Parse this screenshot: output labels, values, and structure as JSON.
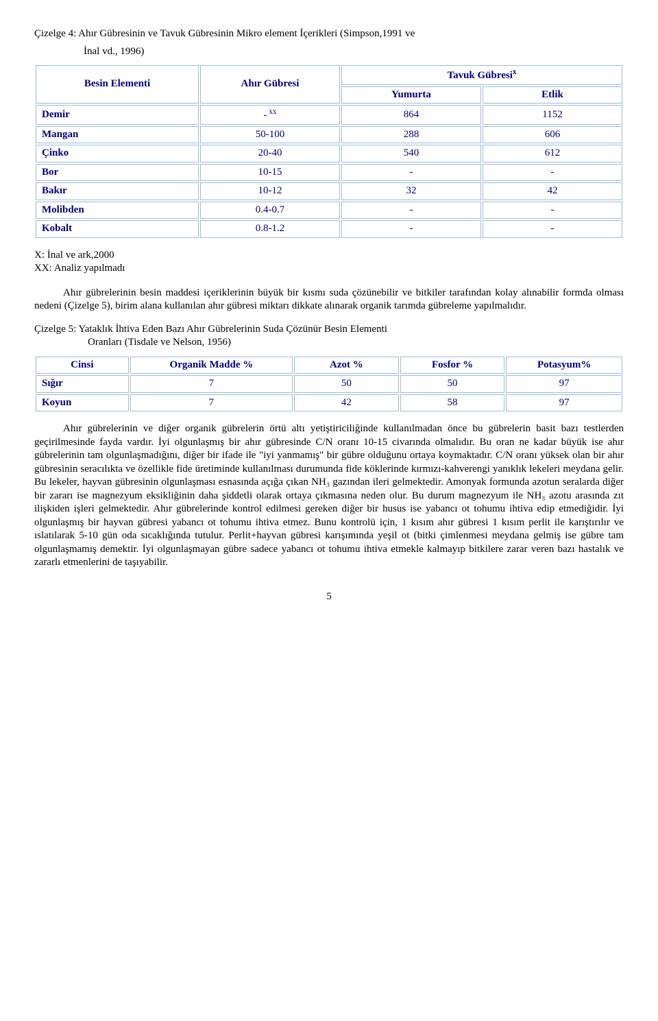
{
  "table4": {
    "caption_line1": "Çizelge 4: Ahır Gübresinin ve Tavuk Gübresinin Mikro element İçerikleri (Simpson,1991 ve",
    "caption_line2": "İnal vd., 1996)",
    "col_besin": "Besin Elementi",
    "col_ahir": "Ahır Gübresi",
    "col_tavuk": "Tavuk Gübresi",
    "col_tavuk_sup": "x",
    "col_yumurta": "Yumurta",
    "col_etlik": "Etlik",
    "rows": [
      {
        "name": "Demir",
        "ahir_pre": "-",
        "ahir_sup": " xx",
        "yum": "864",
        "etl": "1152"
      },
      {
        "name": "Mangan",
        "ahir": "50-100",
        "yum": "288",
        "etl": "606"
      },
      {
        "name": "Çinko",
        "ahir": "20-40",
        "yum": "540",
        "etl": "612"
      },
      {
        "name": "Bor",
        "ahir": "10-15",
        "yum": "-",
        "etl": "-"
      },
      {
        "name": "Bakır",
        "ahir": "10-12",
        "yum": "32",
        "etl": "42"
      },
      {
        "name": "Molibden",
        "ahir": "0.4-0.7",
        "yum": "-",
        "etl": "-"
      },
      {
        "name": "Kobalt",
        "ahir": "0.8-1.2",
        "yum": "-",
        "etl": "-"
      }
    ],
    "note1": "X: İnal ve ark,2000",
    "note2": "XX: Analiz yapılmadı"
  },
  "paragraph1": "Ahır gübrelerinin besin maddesi içeriklerinin büyük bir kısmı suda çözünebilir ve bitkiler tarafından kolay alınabilir formda olması nedeni (Çizelge 5), birim alana kullanılan ahır gübresi miktarı dikkate alınarak organik tarımda gübreleme yapılmalıdır.",
  "table5": {
    "caption_line1": "Çizelge 5: Yataklık İhtiva Eden Bazı Ahır Gübrelerinin Suda Çözünür Besin Elementi",
    "caption_line2": "Oranları  (Tisdale ve Nelson, 1956)",
    "col_cinsi": "Cinsi",
    "col_om": "Organik Madde %",
    "col_azot": "Azot %",
    "col_fosfor": "Fosfor %",
    "col_potas": "Potasyum%",
    "rows": [
      {
        "name": "Sığır",
        "om": "7",
        "azot": "50",
        "fos": "50",
        "pot": "97"
      },
      {
        "name": "Koyun",
        "om": "7",
        "azot": "42",
        "fos": "58",
        "pot": "97"
      }
    ]
  },
  "paragraph2": "Ahır gübrelerinin ve diğer organik gübrelerin örtü altı yetiştiriciliğinde kullanılmadan önce bu gübrelerin basit bazı testlerden geçirilmesinde fayda vardır. İyi olgunlaşmış bir ahır gübresinde C/N oranı 10-15 civarında olmalıdır. Bu oran ne kadar büyük ise ahır gübrelerinin tam olgunlaşmadığını, diğer bir ifade ile \"iyi yanmamış\" bir gübre olduğunu ortaya koymaktadır. C/N oranı yüksek olan bir ahır gübresinin seracılıkta ve özellikle fide üretiminde kullanılması durumunda fide köklerinde kırmızı-kahverengi yanıklık lekeleri meydana gelir. Bu lekeler, hayvan gübresinin olgunlaşması esnasında açığa çıkan NH₃ gazından ileri gelmektedir. Amonyak formunda azotun seralarda diğer bir zararı ise magnezyum eksikliğinin daha şiddetli olarak ortaya çıkmasına neden olur. Bu durum magnezyum ile NH₃ azotu arasında zıt ilişkiden işleri gelmektedir. Ahır gübrelerinde kontrol edilmesi gereken diğer bir husus ise yabancı ot tohumu ihtiva edip etmediğidir. İyi olgunlaşmış bir hayvan gübresi yabancı ot tohumu ihtiva etmez. Bunu kontrolü için, 1 kısım ahır gübresi 1 kısım perlit ile karıştırılır ve ıslatılarak 5-10 gün oda sıcaklığında tutulur. Perlit+hayvan gübresi karışımında yeşil ot (bitki çimlenmesi meydana gelmiş ise gübre tam olgunlaşmamış demektir. İyi olgunlaşmayan gübre sadece yabancı ot tohumu ihtiva etmekle kalmayıp bitkilere zarar veren bazı hastalık ve zararlı etmenlerini de taşıyabilir.",
  "pagenum": "5",
  "colors": {
    "border": "#99bbdd",
    "text_header": "#000080"
  }
}
